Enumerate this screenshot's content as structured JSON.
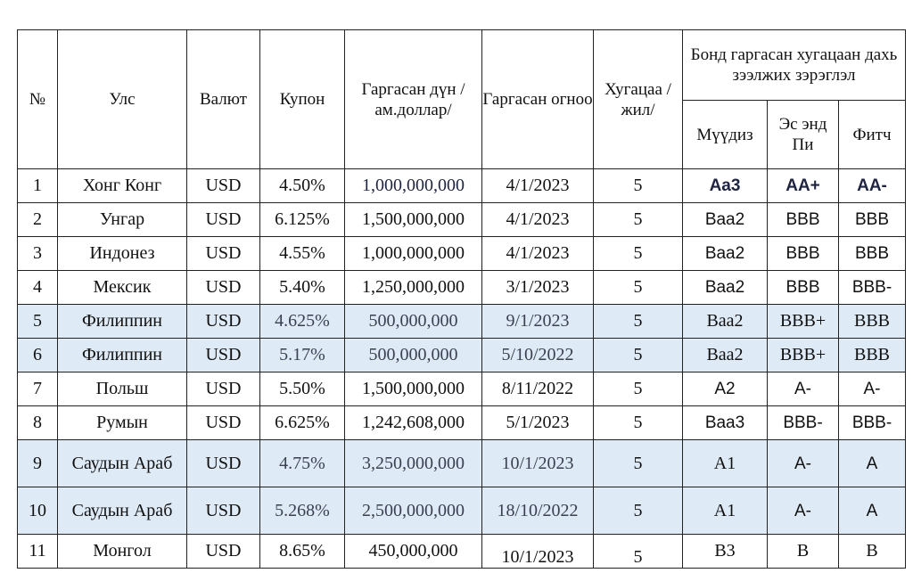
{
  "headers": {
    "num": "№",
    "country": "Улс",
    "currency": "Валют",
    "coupon": "Купон",
    "amount": "Гаргасан дүн /ам.доллар/",
    "date": "Гаргасан огноо",
    "term": "Хугацаа /жил/",
    "rating_group": "Бонд гаргасан хугацаан дахь зээлжих зэрэглэл",
    "moodys": "Мүүдиз",
    "sp": "Эс энд Пи",
    "fitch": "Фитч"
  },
  "rows": [
    {
      "num": "1",
      "country": "Хонг Конг",
      "currency": "USD",
      "coupon": "4.50%",
      "amount": "1,000,000,000",
      "date": "4/1/2023",
      "term": "5",
      "moodys": "Aa3",
      "sp": "AA+",
      "fitch": "AA-"
    },
    {
      "num": "2",
      "country": "Унгар",
      "currency": "USD",
      "coupon": "6.125%",
      "amount": "1,500,000,000",
      "date": "4/1/2023",
      "term": "5",
      "moodys": "Baa2",
      "sp": "BBB",
      "fitch": "BBB"
    },
    {
      "num": "3",
      "country": "Индонез",
      "currency": "USD",
      "coupon": "4.55%",
      "amount": "1,000,000,000",
      "date": "4/1/2023",
      "term": "5",
      "moodys": "Baa2",
      "sp": "BBB",
      "fitch": "BBB"
    },
    {
      "num": "4",
      "country": "Мексик",
      "currency": "USD",
      "coupon": "5.40%",
      "amount": "1,250,000,000",
      "date": "3/1/2023",
      "term": "5",
      "moodys": "Baa2",
      "sp": "BBB",
      "fitch": "BBB-"
    },
    {
      "num": "5",
      "country": "Филиппин",
      "currency": "USD",
      "coupon": "4.625%",
      "amount": "500,000,000",
      "date": "9/1/2023",
      "term": "5",
      "moodys": "Baa2",
      "sp": "BBB+",
      "fitch": "BBB"
    },
    {
      "num": "6",
      "country": "Филиппин",
      "currency": "USD",
      "coupon": "5.17%",
      "amount": "500,000,000",
      "date": "5/10/2022",
      "term": "5",
      "moodys": "Baa2",
      "sp": "BBB+",
      "fitch": "BBB"
    },
    {
      "num": "7",
      "country": "Польш",
      "currency": "USD",
      "coupon": "5.50%",
      "amount": "1,500,000,000",
      "date": "8/11/2022",
      "term": "5",
      "moodys": "A2",
      "sp": "A-",
      "fitch": "A-"
    },
    {
      "num": "8",
      "country": "Румын",
      "currency": "USD",
      "coupon": "6.625%",
      "amount": "1,242,608,000",
      "date": "5/1/2023",
      "term": "5",
      "moodys": "Baa3",
      "sp": "BBB-",
      "fitch": "BBB-"
    },
    {
      "num": "9",
      "country": "Саудын Араб",
      "currency": "USD",
      "coupon": "4.75%",
      "amount": "3,250,000,000",
      "date": "10/1/2023",
      "term": "5",
      "moodys": "A1",
      "sp": "A-",
      "fitch": "A"
    },
    {
      "num": "10",
      "country": "Саудын Араб",
      "currency": "USD",
      "coupon": "5.268%",
      "amount": "2,500,000,000",
      "date": "18/10/2022",
      "term": "5",
      "moodys": "A1",
      "sp": "A-",
      "fitch": "A"
    },
    {
      "num": "11",
      "country": "Монгол",
      "currency": "USD",
      "coupon": "8.65%",
      "amount": "450,000,000",
      "date": "10/1/2023",
      "term": "5",
      "moodys": "B3",
      "sp": "B",
      "fitch": "B"
    }
  ],
  "colors": {
    "highlight": "#deeaf6",
    "border": "#222222",
    "text": "#111111"
  }
}
